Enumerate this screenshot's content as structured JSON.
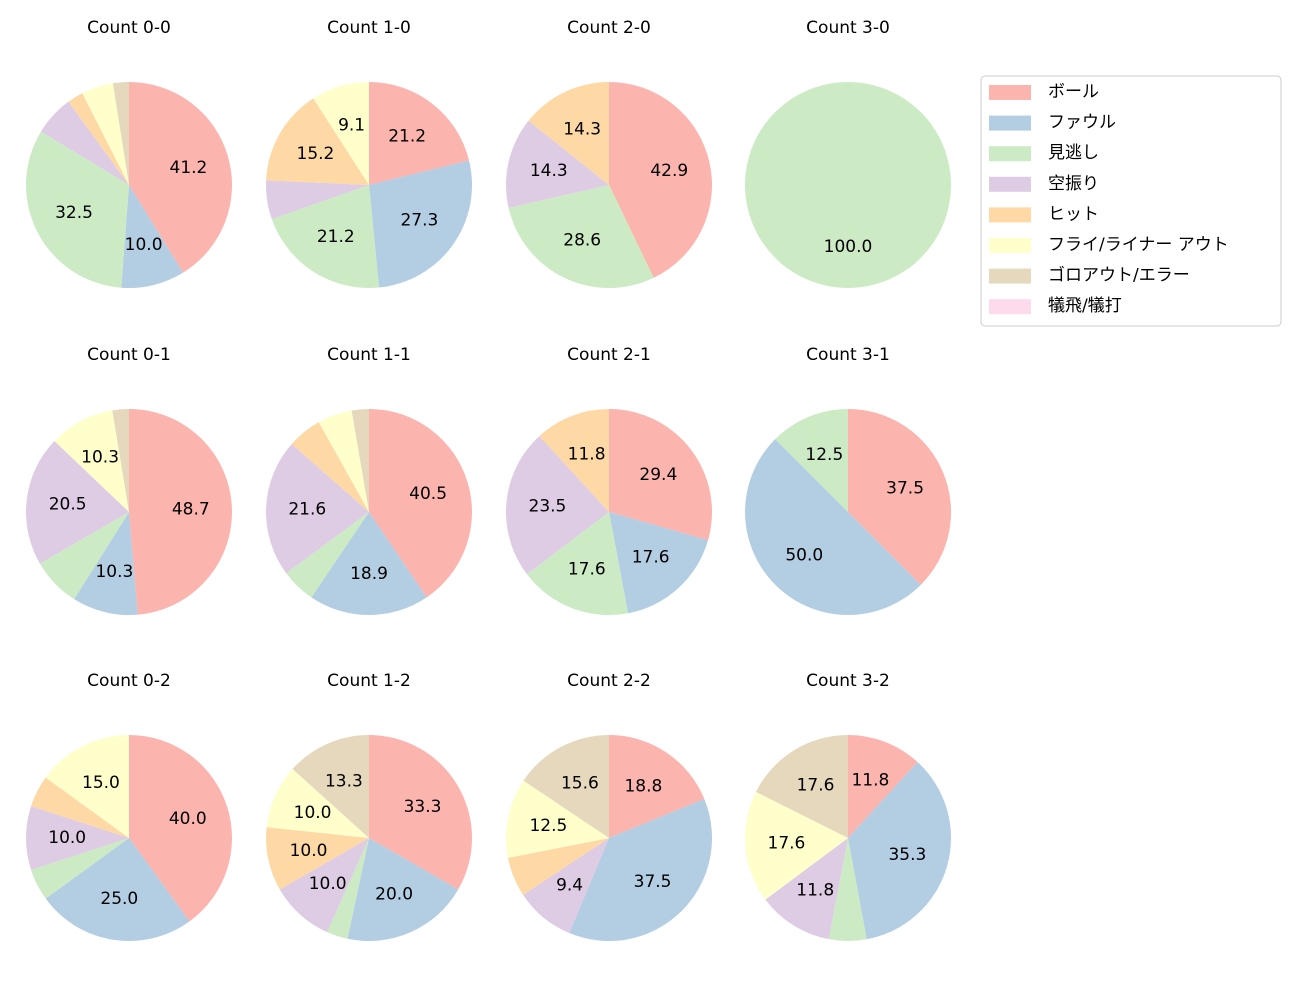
{
  "chart_data": [
    {
      "type": "pie",
      "title": "Count 0-0",
      "categories": [
        "ボール",
        "ファウル",
        "見逃し",
        "空振り",
        "ヒット",
        "フライ/ライナー アウト",
        "ゴロアウト/エラー",
        "犠飛/犠打"
      ],
      "colors": [
        "#fbb4ae",
        "#b3cde3",
        "#ccebc5",
        "#decbe4",
        "#fed9a6",
        "#ffffcc",
        "#e5d8bd",
        "#fddaec"
      ],
      "values": [
        41.2,
        10.0,
        32.5,
        6.3,
        2.5,
        5.0,
        2.5,
        0
      ],
      "value_labels": [
        "41.2",
        "10.0",
        "32.5",
        null,
        null,
        null,
        null,
        null
      ]
    },
    {
      "type": "pie",
      "title": "Count 1-0",
      "categories": [
        "ボール",
        "ファウル",
        "見逃し",
        "空振り",
        "ヒット",
        "フライ/ライナー アウト",
        "ゴロアウト/エラー",
        "犠飛/犠打"
      ],
      "colors": [
        "#fbb4ae",
        "#b3cde3",
        "#ccebc5",
        "#decbe4",
        "#fed9a6",
        "#ffffcc",
        "#e5d8bd",
        "#fddaec"
      ],
      "values": [
        21.2,
        27.3,
        21.2,
        6.1,
        15.2,
        9.1,
        0,
        0
      ],
      "value_labels": [
        "21.2",
        "27.3",
        "21.2",
        null,
        "15.2",
        "9.1",
        null,
        null
      ]
    },
    {
      "type": "pie",
      "title": "Count 2-0",
      "categories": [
        "ボール",
        "ファウル",
        "見逃し",
        "空振り",
        "ヒット",
        "フライ/ライナー アウト",
        "ゴロアウト/エラー",
        "犠飛/犠打"
      ],
      "colors": [
        "#fbb4ae",
        "#b3cde3",
        "#ccebc5",
        "#decbe4",
        "#fed9a6",
        "#ffffcc",
        "#e5d8bd",
        "#fddaec"
      ],
      "values": [
        42.9,
        0,
        28.6,
        14.3,
        14.3,
        0,
        0,
        0
      ],
      "value_labels": [
        "42.9",
        null,
        "28.6",
        "14.3",
        "14.3",
        null,
        null,
        null
      ]
    },
    {
      "type": "pie",
      "title": "Count 3-0",
      "categories": [
        "ボール",
        "ファウル",
        "見逃し",
        "空振り",
        "ヒット",
        "フライ/ライナー アウト",
        "ゴロアウト/エラー",
        "犠飛/犠打"
      ],
      "colors": [
        "#fbb4ae",
        "#b3cde3",
        "#ccebc5",
        "#decbe4",
        "#fed9a6",
        "#ffffcc",
        "#e5d8bd",
        "#fddaec"
      ],
      "values": [
        0,
        0,
        100.0,
        0,
        0,
        0,
        0,
        0
      ],
      "value_labels": [
        null,
        null,
        "100.0",
        null,
        null,
        null,
        null,
        null
      ]
    },
    {
      "type": "pie",
      "title": "Count 0-1",
      "categories": [
        "ボール",
        "ファウル",
        "見逃し",
        "空振り",
        "ヒット",
        "フライ/ライナー アウト",
        "ゴロアウト/エラー",
        "犠飛/犠打"
      ],
      "colors": [
        "#fbb4ae",
        "#b3cde3",
        "#ccebc5",
        "#decbe4",
        "#fed9a6",
        "#ffffcc",
        "#e5d8bd",
        "#fddaec"
      ],
      "values": [
        48.7,
        10.3,
        7.7,
        20.5,
        0,
        10.3,
        2.6,
        0
      ],
      "value_labels": [
        "48.7",
        "10.3",
        null,
        "20.5",
        null,
        "10.3",
        null,
        null
      ]
    },
    {
      "type": "pie",
      "title": "Count 1-1",
      "categories": [
        "ボール",
        "ファウル",
        "見逃し",
        "空振り",
        "ヒット",
        "フライ/ライナー アウト",
        "ゴロアウト/エラー",
        "犠飛/犠打"
      ],
      "colors": [
        "#fbb4ae",
        "#b3cde3",
        "#ccebc5",
        "#decbe4",
        "#fed9a6",
        "#ffffcc",
        "#e5d8bd",
        "#fddaec"
      ],
      "values": [
        40.5,
        18.9,
        5.4,
        21.6,
        5.4,
        5.4,
        2.7,
        0
      ],
      "value_labels": [
        "40.5",
        "18.9",
        null,
        "21.6",
        null,
        null,
        null,
        null
      ]
    },
    {
      "type": "pie",
      "title": "Count 2-1",
      "categories": [
        "ボール",
        "ファウル",
        "見逃し",
        "空振り",
        "ヒット",
        "フライ/ライナー アウト",
        "ゴロアウト/エラー",
        "犠飛/犠打"
      ],
      "colors": [
        "#fbb4ae",
        "#b3cde3",
        "#ccebc5",
        "#decbe4",
        "#fed9a6",
        "#ffffcc",
        "#e5d8bd",
        "#fddaec"
      ],
      "values": [
        29.4,
        17.6,
        17.6,
        23.5,
        11.8,
        0,
        0,
        0
      ],
      "value_labels": [
        "29.4",
        "17.6",
        "17.6",
        "23.5",
        "11.8",
        null,
        null,
        null
      ]
    },
    {
      "type": "pie",
      "title": "Count 3-1",
      "categories": [
        "ボール",
        "ファウル",
        "見逃し",
        "空振り",
        "ヒット",
        "フライ/ライナー アウト",
        "ゴロアウト/エラー",
        "犠飛/犠打"
      ],
      "colors": [
        "#fbb4ae",
        "#b3cde3",
        "#ccebc5",
        "#decbe4",
        "#fed9a6",
        "#ffffcc",
        "#e5d8bd",
        "#fddaec"
      ],
      "values": [
        37.5,
        50.0,
        12.5,
        0,
        0,
        0,
        0,
        0
      ],
      "value_labels": [
        "37.5",
        "50.0",
        "12.5",
        null,
        null,
        null,
        null,
        null
      ]
    },
    {
      "type": "pie",
      "title": "Count 0-2",
      "categories": [
        "ボール",
        "ファウル",
        "見逃し",
        "空振り",
        "ヒット",
        "フライ/ライナー アウト",
        "ゴロアウト/エラー",
        "犠飛/犠打"
      ],
      "colors": [
        "#fbb4ae",
        "#b3cde3",
        "#ccebc5",
        "#decbe4",
        "#fed9a6",
        "#ffffcc",
        "#e5d8bd",
        "#fddaec"
      ],
      "values": [
        40.0,
        25.0,
        5.0,
        10.0,
        5.0,
        15.0,
        0,
        0
      ],
      "value_labels": [
        "40.0",
        "25.0",
        null,
        "10.0",
        null,
        "15.0",
        null,
        null
      ]
    },
    {
      "type": "pie",
      "title": "Count 1-2",
      "categories": [
        "ボール",
        "ファウル",
        "見逃し",
        "空振り",
        "ヒット",
        "フライ/ライナー アウト",
        "ゴロアウト/エラー",
        "犠飛/犠打"
      ],
      "colors": [
        "#fbb4ae",
        "#b3cde3",
        "#ccebc5",
        "#decbe4",
        "#fed9a6",
        "#ffffcc",
        "#e5d8bd",
        "#fddaec"
      ],
      "values": [
        33.3,
        20.0,
        3.3,
        10.0,
        10.0,
        10.0,
        13.3,
        0
      ],
      "value_labels": [
        "33.3",
        "20.0",
        null,
        "10.0",
        "10.0",
        "10.0",
        "13.3",
        null
      ]
    },
    {
      "type": "pie",
      "title": "Count 2-2",
      "categories": [
        "ボール",
        "ファウル",
        "見逃し",
        "空振り",
        "ヒット",
        "フライ/ライナー アウト",
        "ゴロアウト/エラー",
        "犠飛/犠打"
      ],
      "colors": [
        "#fbb4ae",
        "#b3cde3",
        "#ccebc5",
        "#decbe4",
        "#fed9a6",
        "#ffffcc",
        "#e5d8bd",
        "#fddaec"
      ],
      "values": [
        18.8,
        37.5,
        0,
        9.4,
        6.2,
        12.5,
        15.6,
        0
      ],
      "value_labels": [
        "18.8",
        "37.5",
        null,
        "9.4",
        null,
        "12.5",
        "15.6",
        null
      ]
    },
    {
      "type": "pie",
      "title": "Count 3-2",
      "categories": [
        "ボール",
        "ファウル",
        "見逃し",
        "空振り",
        "ヒット",
        "フライ/ライナー アウト",
        "ゴロアウト/エラー",
        "犠飛/犠打"
      ],
      "colors": [
        "#fbb4ae",
        "#b3cde3",
        "#ccebc5",
        "#decbe4",
        "#fed9a6",
        "#ffffcc",
        "#e5d8bd",
        "#fddaec"
      ],
      "values": [
        11.8,
        35.3,
        5.9,
        11.8,
        0,
        17.6,
        17.6,
        0
      ],
      "value_labels": [
        "11.8",
        "35.3",
        null,
        "11.8",
        null,
        "17.6",
        "17.6",
        null
      ]
    }
  ]
}
